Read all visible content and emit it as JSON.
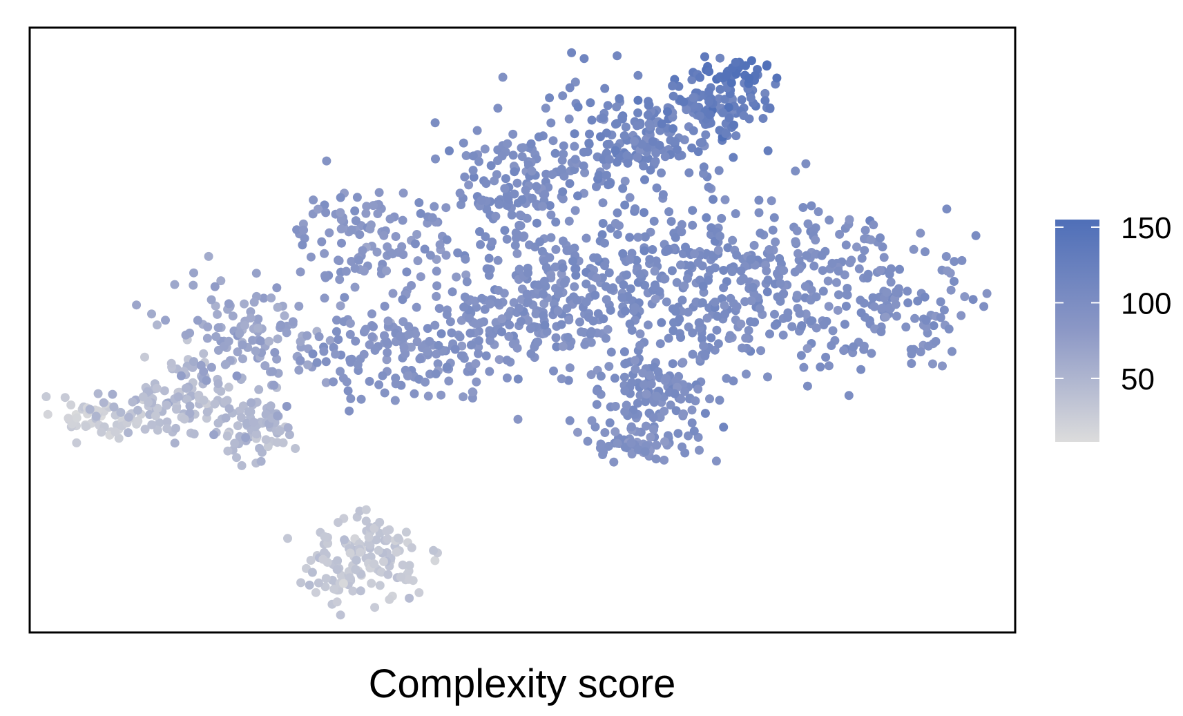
{
  "chart_data": {
    "type": "scatter",
    "title": "",
    "xlabel": "Complexity score",
    "ylabel": "",
    "axes_visible": false,
    "grid": false,
    "x_range": [
      -50,
      50
    ],
    "y_range": [
      -35,
      30
    ],
    "legend": {
      "type": "colorbar",
      "position": "right",
      "ticks": [
        50,
        100,
        150
      ],
      "range": [
        8,
        155
      ],
      "color_low": "#dcdcdc",
      "color_mid": "#8c98c6",
      "color_high": "#4f6fb8"
    },
    "clusters": [
      {
        "n": 60,
        "x": -43,
        "y": -12,
        "sx": 2.2,
        "sy": 1.2,
        "value": 22,
        "value_sd": 6
      },
      {
        "n": 120,
        "x": -34,
        "y": -10,
        "sx": 3.5,
        "sy": 2.5,
        "value": 42,
        "value_sd": 8
      },
      {
        "n": 70,
        "x": -27,
        "y": -13,
        "sx": 1.8,
        "sy": 2.2,
        "value": 48,
        "value_sd": 8
      },
      {
        "n": 120,
        "x": -27,
        "y": -3,
        "sx": 4.5,
        "sy": 3,
        "value": 68,
        "value_sd": 8
      },
      {
        "n": 110,
        "x": -15,
        "y": 7,
        "sx": 4,
        "sy": 3,
        "value": 85,
        "value_sd": 6
      },
      {
        "n": 170,
        "x": -11,
        "y": -4,
        "sx": 5,
        "sy": 3,
        "value": 90,
        "value_sd": 6
      },
      {
        "n": 170,
        "x": 0,
        "y": 13,
        "sx": 4,
        "sy": 4,
        "value": 100,
        "value_sd": 6
      },
      {
        "n": 230,
        "x": 2,
        "y": 0,
        "sx": 5,
        "sy": 4,
        "value": 96,
        "value_sd": 6
      },
      {
        "n": 170,
        "x": 12,
        "y": 18,
        "sx": 4,
        "sy": 3.5,
        "value": 112,
        "value_sd": 8
      },
      {
        "n": 220,
        "x": 15,
        "y": 3,
        "sx": 5,
        "sy": 4.5,
        "value": 103,
        "value_sd": 6
      },
      {
        "n": 130,
        "x": 14,
        "y": -9,
        "sx": 3,
        "sy": 3,
        "value": 100,
        "value_sd": 6
      },
      {
        "n": 60,
        "x": 11,
        "y": -15,
        "sx": 2.2,
        "sy": 1,
        "value": 90,
        "value_sd": 6
      },
      {
        "n": 110,
        "x": 20,
        "y": 22,
        "sx": 2.5,
        "sy": 2,
        "value": 128,
        "value_sd": 10
      },
      {
        "n": 30,
        "x": 22,
        "y": 25,
        "sx": 1.5,
        "sy": 0.6,
        "value": 148,
        "value_sd": 4
      },
      {
        "n": 190,
        "x": 28,
        "y": 3,
        "sx": 5,
        "sy": 4.5,
        "value": 98,
        "value_sd": 6
      },
      {
        "n": 100,
        "x": 38,
        "y": 0,
        "sx": 4,
        "sy": 3.5,
        "value": 95,
        "value_sd": 6
      },
      {
        "n": 140,
        "x": -16,
        "y": -27,
        "sx": 3,
        "sy": 2.2,
        "value": 30,
        "value_sd": 6
      }
    ]
  }
}
